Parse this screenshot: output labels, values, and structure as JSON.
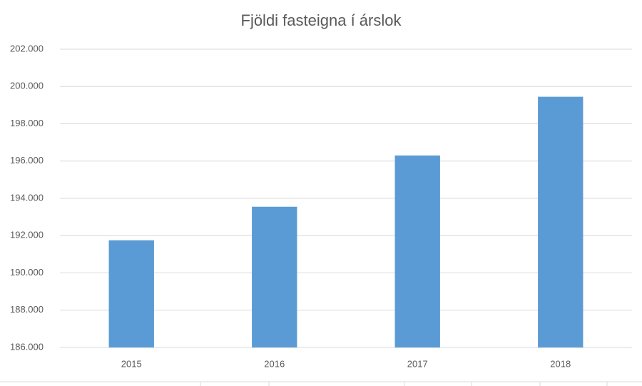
{
  "chart_data": {
    "type": "bar",
    "title": "Fjöldi fasteigna í árslok",
    "categories": [
      "2015",
      "2016",
      "2017",
      "2018"
    ],
    "values": [
      191750,
      193550,
      196300,
      199450
    ],
    "color": "#5b9bd5",
    "ylim": [
      186000,
      202000
    ],
    "yticks": [
      {
        "value": 186000,
        "label": "186.000"
      },
      {
        "value": 188000,
        "label": "188.000"
      },
      {
        "value": 190000,
        "label": "190.000"
      },
      {
        "value": 192000,
        "label": "192.000"
      },
      {
        "value": 194000,
        "label": "194.000"
      },
      {
        "value": 196000,
        "label": "196.000"
      },
      {
        "value": 198000,
        "label": "198.000"
      },
      {
        "value": 200000,
        "label": "200.000"
      },
      {
        "value": 202000,
        "label": "202.000"
      }
    ],
    "grid": true
  }
}
